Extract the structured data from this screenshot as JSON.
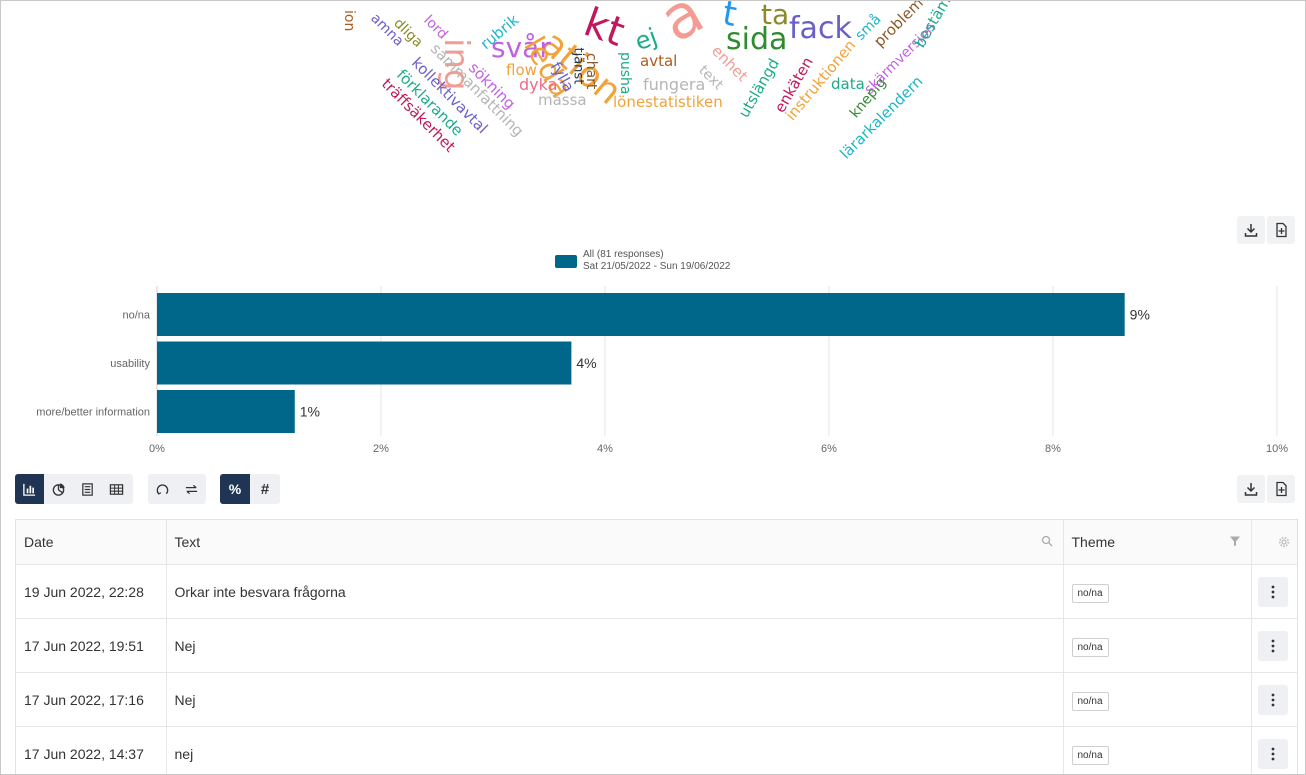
{
  "word_cloud": {
    "words": [
      {
        "text": "ing",
        "color": "#f39c93",
        "size": 34,
        "x": 455,
        "y": 20,
        "rot": 90
      },
      {
        "text": "ation",
        "color": "#f1a33a",
        "size": 36,
        "x": 545,
        "y": 20,
        "rot": 40
      },
      {
        "text": "kt",
        "color": "#c0185c",
        "size": 40,
        "x": 585,
        "y": 0,
        "rot": 20
      },
      {
        "text": "a",
        "color": "#f39c93",
        "size": 60,
        "x": 665,
        "y": -5,
        "rot": -30
      },
      {
        "text": "t",
        "color": "#2196f3",
        "size": 34,
        "x": 722,
        "y": -5,
        "rot": 10
      },
      {
        "text": "ta",
        "color": "#8a8a2a",
        "size": 28,
        "x": 760,
        "y": 0,
        "rot": 0
      },
      {
        "text": "sida",
        "color": "#2e8b2e",
        "size": 30,
        "x": 725,
        "y": 24,
        "rot": 0
      },
      {
        "text": "fack",
        "color": "#6b5ec7",
        "size": 30,
        "x": 788,
        "y": 13,
        "rot": 0
      },
      {
        "text": "svår",
        "color": "#c061e0",
        "size": 28,
        "x": 490,
        "y": 33,
        "rot": 0
      },
      {
        "text": "leda",
        "color": "#f1a33a",
        "size": 30,
        "x": 530,
        "y": 24,
        "rot": 60
      },
      {
        "text": "ej",
        "color": "#1aab8a",
        "size": 24,
        "x": 635,
        "y": 30,
        "rot": -20
      },
      {
        "text": "rubrik",
        "color": "#1fb5c9",
        "size": 15,
        "x": 482,
        "y": 38,
        "rot": -40
      },
      {
        "text": "flow",
        "color": "#f1a33a",
        "size": 15,
        "x": 505,
        "y": 62,
        "rot": 0
      },
      {
        "text": "dyka",
        "color": "#f06b8a",
        "size": 16,
        "x": 518,
        "y": 76,
        "rot": 0
      },
      {
        "text": "massa",
        "color": "#b5b5b5",
        "size": 15,
        "x": 537,
        "y": 92,
        "rot": 0
      },
      {
        "text": "fylla",
        "color": "#6b5ec7",
        "size": 15,
        "x": 553,
        "y": 55,
        "rot": 60
      },
      {
        "text": "tjänst",
        "color": "#1f3553",
        "size": 13,
        "x": 577,
        "y": 40,
        "rot": 90
      },
      {
        "text": "chart",
        "color": "#8b5a2b",
        "size": 14,
        "x": 590,
        "y": 45,
        "rot": 90
      },
      {
        "text": "pusha",
        "color": "#1aab8a",
        "size": 14,
        "x": 624,
        "y": 44,
        "rot": 90
      },
      {
        "text": "avtal",
        "color": "#b05a1a",
        "size": 15,
        "x": 639,
        "y": 53,
        "rot": 0
      },
      {
        "text": "fungera",
        "color": "#b5b5b5",
        "size": 16,
        "x": 642,
        "y": 76,
        "rot": 0
      },
      {
        "text": "lönestatistiken",
        "color": "#f1a33a",
        "size": 15,
        "x": 612,
        "y": 94,
        "rot": 0
      },
      {
        "text": "text",
        "color": "#b5b5b5",
        "size": 14,
        "x": 700,
        "y": 60,
        "rot": 45
      },
      {
        "text": "enhet",
        "color": "#f39c93",
        "size": 15,
        "x": 713,
        "y": 40,
        "rot": 45
      },
      {
        "text": "utslängd",
        "color": "#1aab8a",
        "size": 15,
        "x": 742,
        "y": 108,
        "rot": -60
      },
      {
        "text": "enkäten",
        "color": "#c0185c",
        "size": 15,
        "x": 778,
        "y": 103,
        "rot": -60
      },
      {
        "text": "instruktionen",
        "color": "#f1a33a",
        "size": 15,
        "x": 788,
        "y": 110,
        "rot": -50
      },
      {
        "text": "data",
        "color": "#1aab8a",
        "size": 15,
        "x": 830,
        "y": 76,
        "rot": 0
      },
      {
        "text": "knepig",
        "color": "#2e8b2e",
        "size": 14,
        "x": 852,
        "y": 108,
        "rot": -50
      },
      {
        "text": "lärarkalendern",
        "color": "#1fb5c9",
        "size": 15,
        "x": 842,
        "y": 148,
        "rot": -45
      },
      {
        "text": "skärmversion",
        "color": "#c061e0",
        "size": 14,
        "x": 866,
        "y": 84,
        "rot": -45
      },
      {
        "text": "problem",
        "color": "#8b5a2b",
        "size": 15,
        "x": 876,
        "y": 36,
        "rot": -45
      },
      {
        "text": "bestämmelser",
        "color": "#1aab8a",
        "size": 15,
        "x": 918,
        "y": 38,
        "rot": -60
      },
      {
        "text": "små",
        "color": "#1fb5c9",
        "size": 14,
        "x": 857,
        "y": 30,
        "rot": -45
      },
      {
        "text": "sökning",
        "color": "#c061e0",
        "size": 15,
        "x": 470,
        "y": 57,
        "rot": 45
      },
      {
        "text": "sammanfattning",
        "color": "#b5b5b5",
        "size": 15,
        "x": 432,
        "y": 38,
        "rot": 45
      },
      {
        "text": "kollektivavtal",
        "color": "#6b5ec7",
        "size": 15,
        "x": 413,
        "y": 52,
        "rot": 45
      },
      {
        "text": "förklarande",
        "color": "#1aab8a",
        "size": 15,
        "x": 398,
        "y": 64,
        "rot": 45
      },
      {
        "text": "träffsäkerhet",
        "color": "#c0185c",
        "size": 15,
        "x": 383,
        "y": 73,
        "rot": 45
      },
      {
        "text": "dliga",
        "color": "#8a8a2a",
        "size": 14,
        "x": 395,
        "y": 13,
        "rot": 45
      },
      {
        "text": "lord",
        "color": "#c061e0",
        "size": 14,
        "x": 425,
        "y": 10,
        "rot": 45
      },
      {
        "text": "amna",
        "color": "#6b5ec7",
        "size": 14,
        "x": 372,
        "y": 8,
        "rot": 45
      },
      {
        "text": "ion",
        "color": "#b05a1a",
        "size": 14,
        "x": 348,
        "y": 2,
        "rot": 90
      }
    ]
  },
  "chart_header": {
    "download_icon": "download-icon",
    "export_icon": "export-pdf-icon"
  },
  "legend": {
    "label": "All (81 responses)",
    "date_range": "Sat 21/05/2022 - Sun 19/06/2022",
    "color": "#00668a"
  },
  "chart_data": {
    "type": "bar",
    "orientation": "horizontal",
    "categories": [
      "no/na",
      "usability",
      "more/better information"
    ],
    "series": [
      {
        "name": "All (81 responses)",
        "values": [
          8.64,
          3.7,
          1.23
        ],
        "labels": [
          "9%",
          "4%",
          "1%"
        ]
      }
    ],
    "xlim": [
      0,
      10
    ],
    "xticks": [
      "0%",
      "2%",
      "4%",
      "6%",
      "8%",
      "10%"
    ],
    "grid": true,
    "color": "#00668a"
  },
  "toolbar": {
    "chart_types": [
      {
        "name": "bar-chart-icon",
        "active": true
      },
      {
        "name": "pie-chart-icon",
        "active": false
      },
      {
        "name": "list-icon",
        "active": false
      },
      {
        "name": "table-icon",
        "active": false
      }
    ],
    "actions": [
      {
        "name": "refresh-icon"
      },
      {
        "name": "swap-icon"
      }
    ],
    "modes": [
      {
        "name": "percent-icon",
        "label": "%",
        "active": true
      },
      {
        "name": "hash-icon",
        "label": "#",
        "active": false
      }
    ]
  },
  "table": {
    "headers": {
      "date": "Date",
      "text": "Text",
      "theme": "Theme"
    },
    "rows": [
      {
        "date": "19 Jun 2022, 22:28",
        "text": "Orkar inte besvara frågorna",
        "theme": "no/na"
      },
      {
        "date": "17 Jun 2022, 19:51",
        "text": "Nej",
        "theme": "no/na"
      },
      {
        "date": "17 Jun 2022, 17:16",
        "text": "Nej",
        "theme": "no/na"
      },
      {
        "date": "17 Jun 2022, 14:37",
        "text": "nej",
        "theme": "no/na"
      }
    ]
  }
}
